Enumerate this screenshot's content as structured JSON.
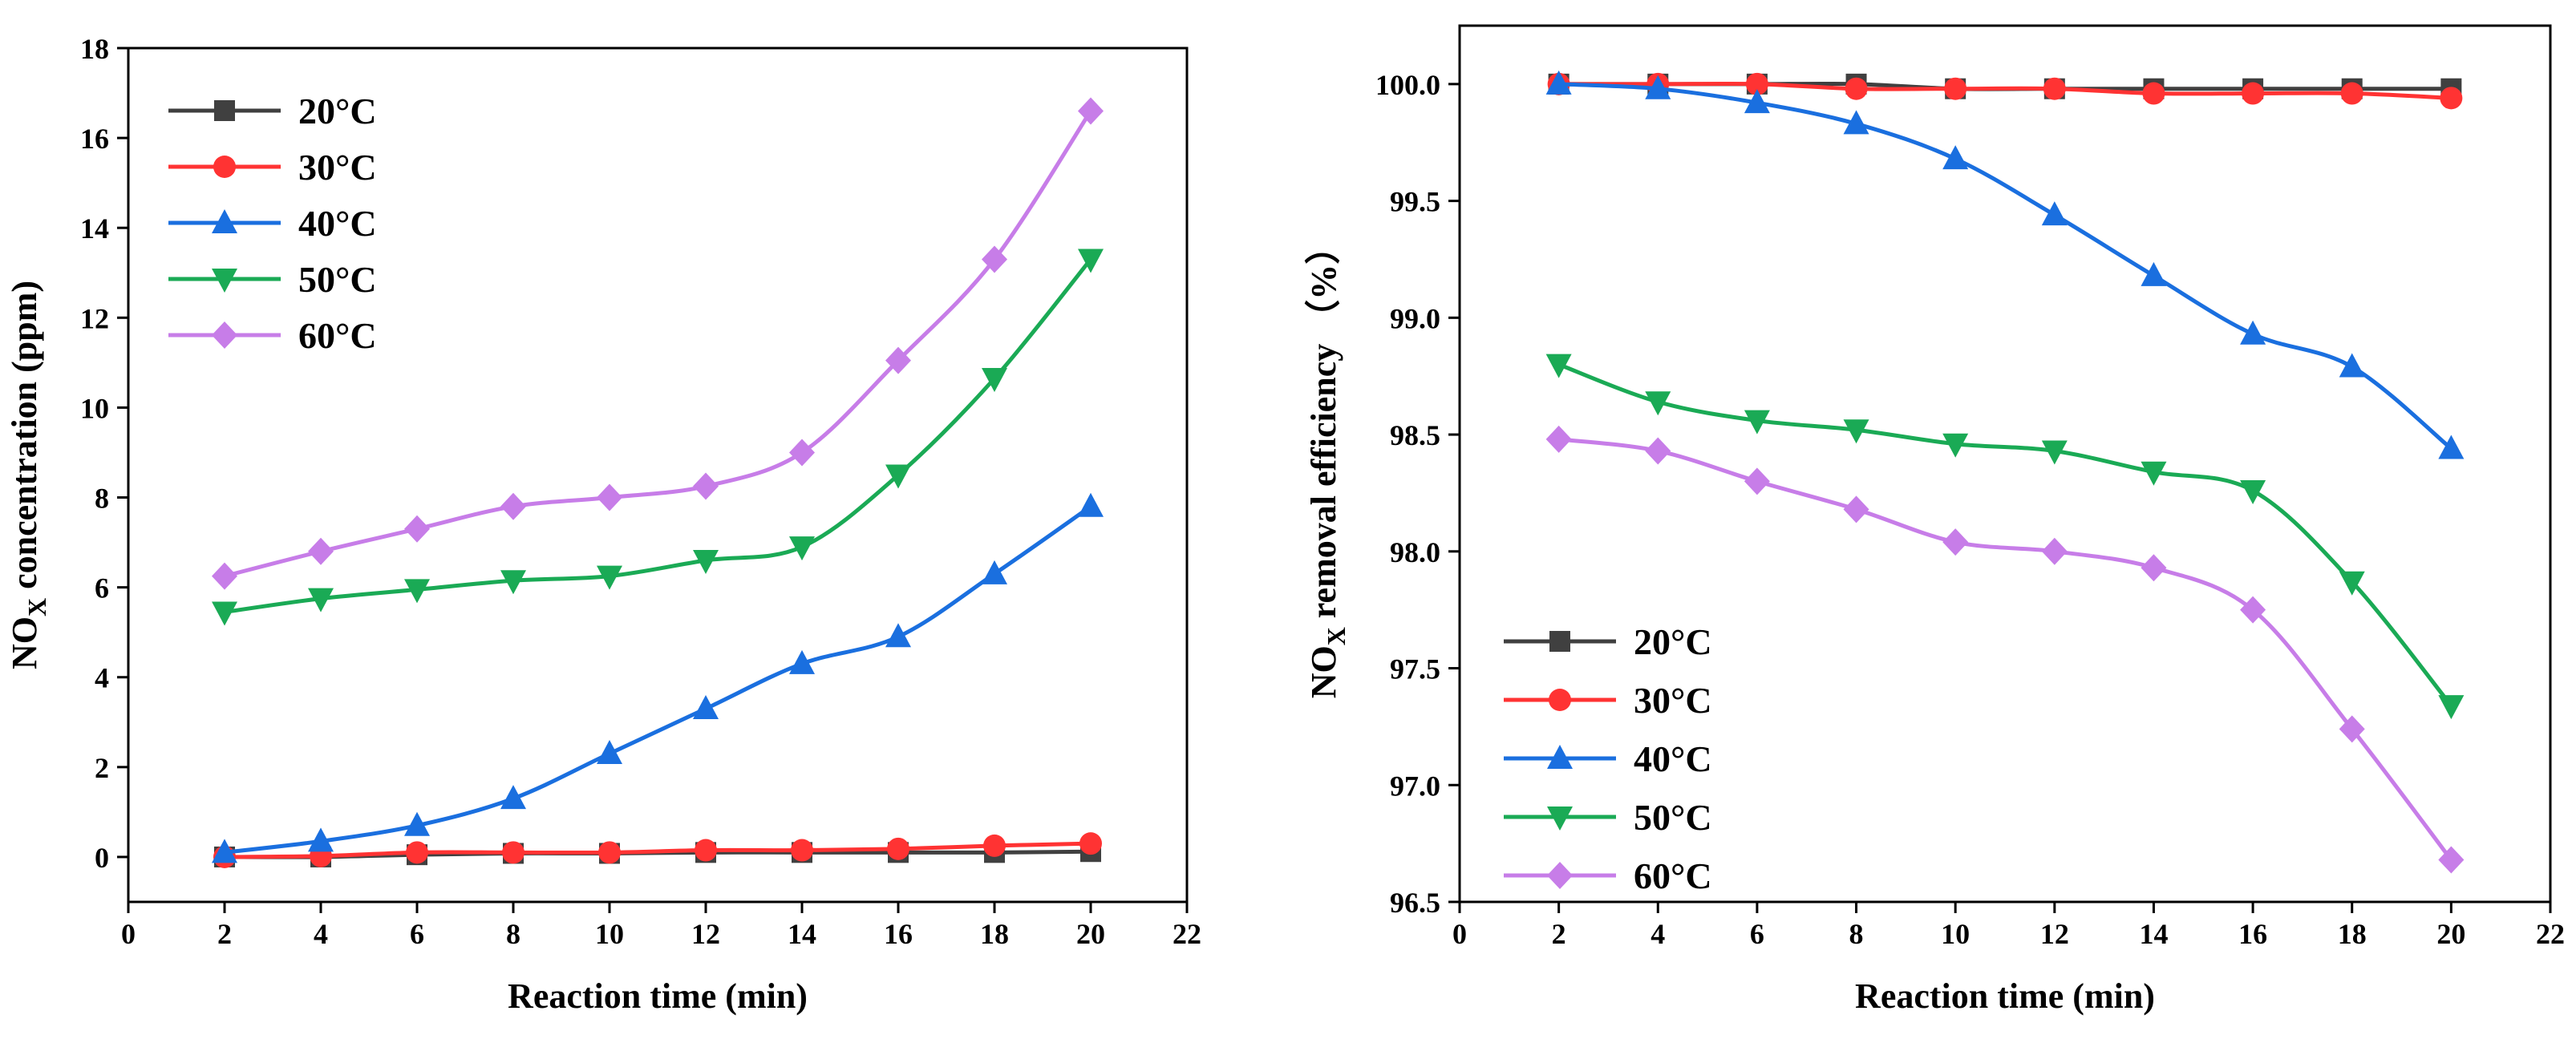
{
  "chart_data": [
    {
      "type": "line",
      "title": "",
      "xlabel": "Reaction time (min)",
      "ylabel_main": "NO",
      "ylabel_sub": "X",
      "ylabel_rest": " concentration (ppm)",
      "xlim": [
        0,
        22
      ],
      "ylim": [
        -1,
        18
      ],
      "xticks": [
        0,
        2,
        4,
        6,
        8,
        10,
        12,
        14,
        16,
        18,
        20,
        22
      ],
      "yticks": [
        0,
        2,
        4,
        6,
        8,
        10,
        12,
        14,
        16,
        18
      ],
      "grid": false,
      "legend_position": "top-left",
      "x": [
        2,
        4,
        6,
        8,
        10,
        12,
        14,
        16,
        18,
        20
      ],
      "series": [
        {
          "name": "20°C",
          "color": "#404040",
          "marker": "square",
          "values": [
            0.0,
            0.0,
            0.05,
            0.08,
            0.08,
            0.1,
            0.1,
            0.1,
            0.1,
            0.12
          ]
        },
        {
          "name": "30°C",
          "color": "#ff3333",
          "marker": "circle",
          "values": [
            0.0,
            0.02,
            0.1,
            0.1,
            0.1,
            0.15,
            0.15,
            0.18,
            0.25,
            0.3
          ]
        },
        {
          "name": "40°C",
          "color": "#1a6fdf",
          "marker": "triangle-up",
          "values": [
            0.1,
            0.35,
            0.7,
            1.3,
            2.3,
            3.3,
            4.3,
            4.9,
            6.3,
            7.8
          ]
        },
        {
          "name": "50°C",
          "color": "#1aaa55",
          "marker": "triangle-down",
          "values": [
            5.45,
            5.75,
            5.95,
            6.15,
            6.25,
            6.6,
            6.9,
            8.5,
            10.65,
            13.3
          ]
        },
        {
          "name": "60°C",
          "color": "#c77de8",
          "marker": "diamond",
          "values": [
            6.25,
            6.8,
            7.3,
            7.8,
            8.0,
            8.25,
            9.0,
            11.05,
            13.3,
            16.6
          ]
        }
      ]
    },
    {
      "type": "line",
      "title": "",
      "xlabel": "Reaction time (min)",
      "ylabel_main": "NO",
      "ylabel_sub": "X",
      "ylabel_rest": " removal efficiency （%）",
      "xlim": [
        0,
        22
      ],
      "ylim": [
        96.5,
        100.25
      ],
      "xticks": [
        0,
        2,
        4,
        6,
        8,
        10,
        12,
        14,
        16,
        18,
        20,
        22
      ],
      "yticks": [
        96.5,
        97.0,
        97.5,
        98.0,
        98.5,
        99.0,
        99.5,
        100.0
      ],
      "ytick_labels": [
        "96.5",
        "97.0",
        "97.5",
        "98.0",
        "98.5",
        "99.0",
        "99.5",
        "100.0"
      ],
      "grid": false,
      "legend_position": "bottom-left",
      "x": [
        2,
        4,
        6,
        8,
        10,
        12,
        14,
        16,
        18,
        20
      ],
      "series": [
        {
          "name": "20°C",
          "color": "#404040",
          "marker": "square",
          "values": [
            100.0,
            100.0,
            100.0,
            100.0,
            99.98,
            99.98,
            99.98,
            99.98,
            99.98,
            99.98
          ]
        },
        {
          "name": "30°C",
          "color": "#ff3333",
          "marker": "circle",
          "values": [
            100.0,
            100.0,
            100.0,
            99.98,
            99.98,
            99.98,
            99.96,
            99.96,
            99.96,
            99.94
          ]
        },
        {
          "name": "40°C",
          "color": "#1a6fdf",
          "marker": "triangle-up",
          "values": [
            100.0,
            99.98,
            99.92,
            99.83,
            99.68,
            99.44,
            99.18,
            98.93,
            98.79,
            98.44
          ]
        },
        {
          "name": "50°C",
          "color": "#1aaa55",
          "marker": "triangle-down",
          "values": [
            98.8,
            98.64,
            98.56,
            98.52,
            98.46,
            98.43,
            98.34,
            98.26,
            97.87,
            97.34
          ]
        },
        {
          "name": "60°C",
          "color": "#c77de8",
          "marker": "diamond",
          "values": [
            98.48,
            98.43,
            98.3,
            98.18,
            98.04,
            98.0,
            97.93,
            97.75,
            97.24,
            96.68
          ]
        }
      ]
    }
  ]
}
